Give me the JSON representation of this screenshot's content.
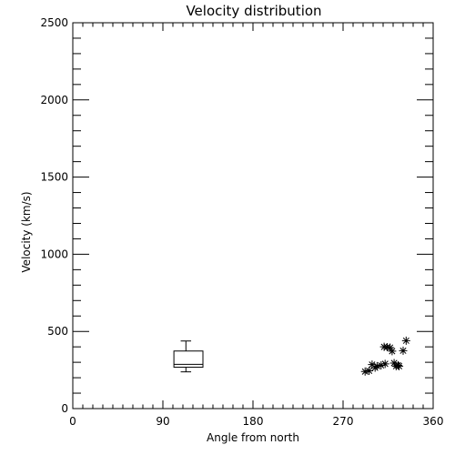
{
  "chart_data": {
    "type": "scatter",
    "title": "Velocity distribution",
    "xlabel": "Angle from north",
    "ylabel": "Velocity (km/s)",
    "xlim": [
      0,
      360
    ],
    "ylim": [
      0,
      2500
    ],
    "xticks": [
      0,
      90,
      180,
      270,
      360
    ],
    "yticks": [
      0,
      500,
      1000,
      1500,
      2000,
      2500
    ],
    "xtick_labels": [
      "0",
      "90",
      "180",
      "270",
      "360"
    ],
    "ytick_labels": [
      "0",
      "500",
      "1000",
      "1500",
      "2000",
      "2500"
    ],
    "x_minor_step": 10,
    "y_minor_step": 100,
    "grid": false,
    "boxplot": {
      "x": 113,
      "x_range": [
        101,
        130
      ],
      "whisker_low": 238,
      "q1": 268,
      "median": 287,
      "q3": 373,
      "whisker_high": 438
    },
    "points": [
      {
        "x": 292,
        "y": 240
      },
      {
        "x": 296,
        "y": 245
      },
      {
        "x": 299,
        "y": 285
      },
      {
        "x": 302,
        "y": 265
      },
      {
        "x": 304,
        "y": 275
      },
      {
        "x": 308,
        "y": 280
      },
      {
        "x": 311,
        "y": 400
      },
      {
        "x": 312,
        "y": 290
      },
      {
        "x": 314,
        "y": 398
      },
      {
        "x": 317,
        "y": 395
      },
      {
        "x": 319,
        "y": 372
      },
      {
        "x": 321,
        "y": 295
      },
      {
        "x": 323,
        "y": 275
      },
      {
        "x": 325,
        "y": 280
      },
      {
        "x": 326,
        "y": 275
      },
      {
        "x": 330,
        "y": 375
      },
      {
        "x": 333,
        "y": 440
      }
    ]
  }
}
